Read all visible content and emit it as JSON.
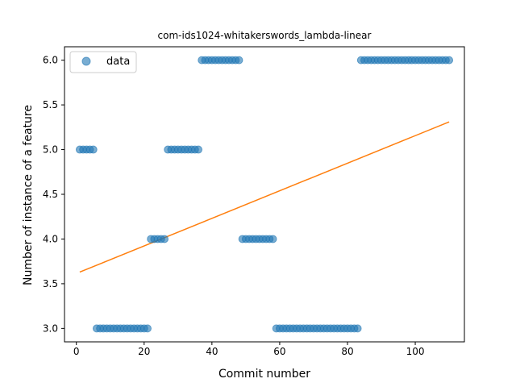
{
  "chart_data": {
    "type": "scatter",
    "title": "com-ids1024-whitakerswords_lambda-linear",
    "xlabel": "Commit number",
    "ylabel": "Number of instance of a feature",
    "xlim": [
      -3.5,
      114.5
    ],
    "ylim": [
      2.85,
      6.15
    ],
    "x_ticks": [
      0,
      20,
      40,
      60,
      80,
      100
    ],
    "y_ticks": [
      3.0,
      3.5,
      4.0,
      4.5,
      5.0,
      5.5,
      6.0
    ],
    "x_tick_labels": [
      "0",
      "20",
      "40",
      "60",
      "80",
      "100"
    ],
    "y_tick_labels": [
      "3.0",
      "3.5",
      "4.0",
      "4.5",
      "5.0",
      "5.5",
      "6.0"
    ],
    "legend": {
      "position": "top-left",
      "entries": [
        "data"
      ]
    },
    "grid": false,
    "colors": {
      "data": "#1f77b4",
      "fit": "#ff7f0e"
    },
    "series": [
      {
        "name": "data",
        "kind": "scatter",
        "points": [
          [
            1,
            5
          ],
          [
            2,
            5
          ],
          [
            3,
            5
          ],
          [
            4,
            5
          ],
          [
            5,
            5
          ],
          [
            6,
            3
          ],
          [
            7,
            3
          ],
          [
            8,
            3
          ],
          [
            9,
            3
          ],
          [
            10,
            3
          ],
          [
            11,
            3
          ],
          [
            12,
            3
          ],
          [
            13,
            3
          ],
          [
            14,
            3
          ],
          [
            15,
            3
          ],
          [
            16,
            3
          ],
          [
            17,
            3
          ],
          [
            18,
            3
          ],
          [
            19,
            3
          ],
          [
            20,
            3
          ],
          [
            21,
            3
          ],
          [
            22,
            4
          ],
          [
            23,
            4
          ],
          [
            24,
            4
          ],
          [
            25,
            4
          ],
          [
            26,
            4
          ],
          [
            27,
            5
          ],
          [
            28,
            5
          ],
          [
            29,
            5
          ],
          [
            30,
            5
          ],
          [
            31,
            5
          ],
          [
            32,
            5
          ],
          [
            33,
            5
          ],
          [
            34,
            5
          ],
          [
            35,
            5
          ],
          [
            36,
            5
          ],
          [
            37,
            6
          ],
          [
            38,
            6
          ],
          [
            39,
            6
          ],
          [
            40,
            6
          ],
          [
            41,
            6
          ],
          [
            42,
            6
          ],
          [
            43,
            6
          ],
          [
            44,
            6
          ],
          [
            45,
            6
          ],
          [
            46,
            6
          ],
          [
            47,
            6
          ],
          [
            48,
            6
          ],
          [
            49,
            4
          ],
          [
            50,
            4
          ],
          [
            51,
            4
          ],
          [
            52,
            4
          ],
          [
            53,
            4
          ],
          [
            54,
            4
          ],
          [
            55,
            4
          ],
          [
            56,
            4
          ],
          [
            57,
            4
          ],
          [
            58,
            4
          ],
          [
            59,
            3
          ],
          [
            60,
            3
          ],
          [
            61,
            3
          ],
          [
            62,
            3
          ],
          [
            63,
            3
          ],
          [
            64,
            3
          ],
          [
            65,
            3
          ],
          [
            66,
            3
          ],
          [
            67,
            3
          ],
          [
            68,
            3
          ],
          [
            69,
            3
          ],
          [
            70,
            3
          ],
          [
            71,
            3
          ],
          [
            72,
            3
          ],
          [
            73,
            3
          ],
          [
            74,
            3
          ],
          [
            75,
            3
          ],
          [
            76,
            3
          ],
          [
            77,
            3
          ],
          [
            78,
            3
          ],
          [
            79,
            3
          ],
          [
            80,
            3
          ],
          [
            81,
            3
          ],
          [
            82,
            3
          ],
          [
            83,
            3
          ],
          [
            84,
            6
          ],
          [
            85,
            6
          ],
          [
            86,
            6
          ],
          [
            87,
            6
          ],
          [
            88,
            6
          ],
          [
            89,
            6
          ],
          [
            90,
            6
          ],
          [
            91,
            6
          ],
          [
            92,
            6
          ],
          [
            93,
            6
          ],
          [
            94,
            6
          ],
          [
            95,
            6
          ],
          [
            96,
            6
          ],
          [
            97,
            6
          ],
          [
            98,
            6
          ],
          [
            99,
            6
          ],
          [
            100,
            6
          ],
          [
            101,
            6
          ],
          [
            102,
            6
          ],
          [
            103,
            6
          ],
          [
            104,
            6
          ],
          [
            105,
            6
          ],
          [
            106,
            6
          ],
          [
            107,
            6
          ],
          [
            108,
            6
          ],
          [
            109,
            6
          ],
          [
            110,
            6
          ]
        ]
      },
      {
        "kind": "line",
        "points": [
          [
            1,
            3.63
          ],
          [
            110,
            5.31
          ]
        ]
      }
    ]
  }
}
